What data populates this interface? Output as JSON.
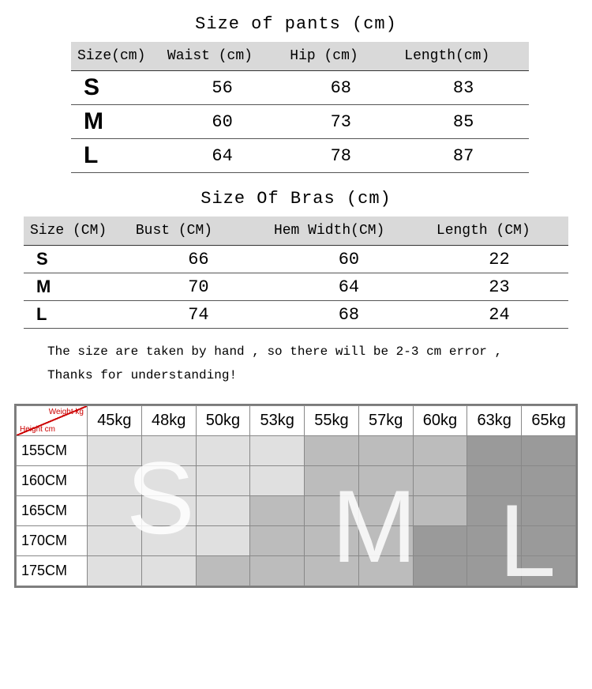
{
  "pants": {
    "title": "Size of pants (cm)",
    "columns": [
      "Size(cm)",
      "Waist (cm)",
      "Hip (cm)",
      "Length(cm)"
    ],
    "rows": [
      {
        "size": "S",
        "waist": "56",
        "hip": "68",
        "length": "83"
      },
      {
        "size": "M",
        "waist": "60",
        "hip": "73",
        "length": "85"
      },
      {
        "size": "L",
        "waist": "64",
        "hip": "78",
        "length": "87"
      }
    ],
    "col_widths": [
      "110px",
      "150px",
      "140px",
      "160px"
    ],
    "header_bg": "#d9d9d9",
    "border_color": "#555555"
  },
  "bras": {
    "title": "Size Of Bras (cm)",
    "columns": [
      "Size (CM)",
      "Bust (CM)",
      "Hem Width(CM)",
      "Length (CM)"
    ],
    "rows": [
      {
        "size": "S",
        "bust": "66",
        "hem": "60",
        "length": "22"
      },
      {
        "size": "M",
        "bust": "70",
        "hem": "64",
        "length": "23"
      },
      {
        "size": "L",
        "bust": "74",
        "hem": "68",
        "length": "24"
      }
    ],
    "col_widths": [
      "130px",
      "170px",
      "200px",
      "170px"
    ],
    "header_bg": "#d9d9d9",
    "border_color": "#555555"
  },
  "note_line1": "The size are taken by hand , so there will be 2-3 cm error ,",
  "note_line2": "Thanks for understanding!",
  "grid": {
    "corner_weight": "Weight kg",
    "corner_height": "Height cm",
    "weights": [
      "45kg",
      "48kg",
      "50kg",
      "53kg",
      "55kg",
      "57kg",
      "60kg",
      "63kg",
      "65kg"
    ],
    "heights": [
      "155CM",
      "160CM",
      "165CM",
      "170CM",
      "175CM"
    ],
    "zones": [
      [
        "s",
        "s",
        "s",
        "s",
        "m",
        "m",
        "m",
        "l",
        "l"
      ],
      [
        "s",
        "s",
        "s",
        "s",
        "m",
        "m",
        "m",
        "l",
        "l"
      ],
      [
        "s",
        "s",
        "s",
        "m",
        "m",
        "m",
        "m",
        "l",
        "l"
      ],
      [
        "s",
        "s",
        "s",
        "m",
        "m",
        "m",
        "l",
        "l",
        "l"
      ],
      [
        "s",
        "s",
        "m",
        "m",
        "m",
        "m",
        "l",
        "l",
        "l"
      ]
    ],
    "zone_colors": {
      "s": "#e0e0e0",
      "m": "#bcbcbc",
      "l": "#9a9a9a"
    },
    "overlay_letters": {
      "s": "S",
      "m": "M",
      "l": "L"
    },
    "overlay_color": "rgba(255,255,255,0.85)",
    "overlay_fontsize": 130,
    "border_color": "#888888",
    "outer_border_color": "#7a7a7a"
  }
}
